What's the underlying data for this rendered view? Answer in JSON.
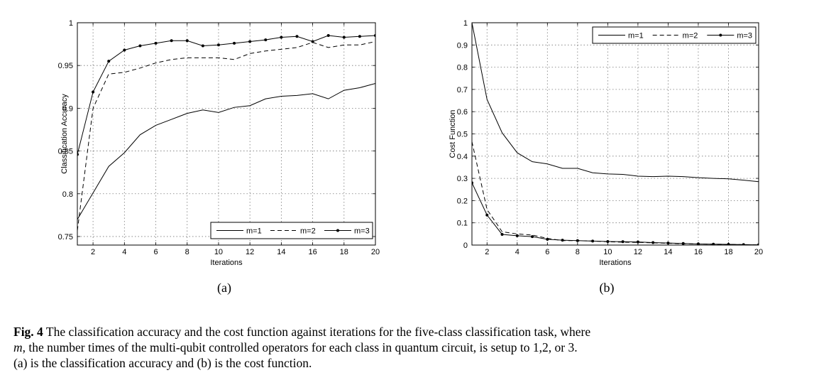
{
  "chart_data": [
    {
      "type": "line",
      "panel_label": "(a)",
      "title": "",
      "xlabel": "Iterations",
      "ylabel": "Classification Accuracy",
      "xlim": [
        1,
        20
      ],
      "ylim": [
        0.74,
        1.0
      ],
      "xticks": [
        2,
        4,
        6,
        8,
        10,
        12,
        14,
        16,
        18,
        20
      ],
      "yticks": [
        0.75,
        0.8,
        0.85,
        0.9,
        0.95,
        1
      ],
      "ytick_labels": [
        "0.75",
        "0.8",
        "0.85",
        "0.9",
        "0.95",
        "1"
      ],
      "grid": true,
      "legend_position": "bottom-right",
      "legend_orientation": "horizontal",
      "x": [
        1,
        2,
        3,
        4,
        5,
        6,
        7,
        8,
        9,
        10,
        11,
        12,
        13,
        14,
        15,
        16,
        17,
        18,
        19,
        20
      ],
      "series": [
        {
          "name": "m=1",
          "style": "solid",
          "marker": "none",
          "values": [
            0.77,
            0.801,
            0.832,
            0.848,
            0.869,
            0.88,
            0.887,
            0.894,
            0.898,
            0.895,
            0.901,
            0.903,
            0.911,
            0.914,
            0.915,
            0.917,
            0.911,
            0.921,
            0.924,
            0.929
          ]
        },
        {
          "name": "m=2",
          "style": "dashed",
          "marker": "none",
          "values": [
            0.757,
            0.9,
            0.94,
            0.942,
            0.947,
            0.953,
            0.957,
            0.959,
            0.959,
            0.959,
            0.957,
            0.964,
            0.967,
            0.969,
            0.971,
            0.977,
            0.971,
            0.974,
            0.974,
            0.978
          ]
        },
        {
          "name": "m=3",
          "style": "solid",
          "marker": "dot",
          "values": [
            0.846,
            0.919,
            0.955,
            0.968,
            0.973,
            0.976,
            0.979,
            0.979,
            0.973,
            0.974,
            0.976,
            0.978,
            0.98,
            0.983,
            0.984,
            0.978,
            0.985,
            0.983,
            0.984,
            0.985
          ]
        }
      ]
    },
    {
      "type": "line",
      "panel_label": "(b)",
      "title": "",
      "xlabel": "Iterations",
      "ylabel": "Cost Function",
      "xlim": [
        1,
        20
      ],
      "ylim": [
        0,
        1
      ],
      "xticks": [
        2,
        4,
        6,
        8,
        10,
        12,
        14,
        16,
        18,
        20
      ],
      "yticks": [
        0,
        0.1,
        0.2,
        0.3,
        0.4,
        0.5,
        0.6,
        0.7,
        0.8,
        0.9,
        1
      ],
      "ytick_labels": [
        "0",
        "0.1",
        "0.2",
        "0.3",
        "0.4",
        "0.5",
        "0.6",
        "0.7",
        "0.8",
        "0.9",
        "1"
      ],
      "grid": true,
      "legend_position": "top-right",
      "legend_orientation": "horizontal",
      "x": [
        1,
        2,
        3,
        4,
        5,
        6,
        7,
        8,
        9,
        10,
        11,
        12,
        13,
        14,
        15,
        16,
        17,
        18,
        19,
        20
      ],
      "series": [
        {
          "name": "m=1",
          "style": "solid",
          "marker": "none",
          "values": [
            1.0,
            0.655,
            0.505,
            0.415,
            0.375,
            0.365,
            0.345,
            0.345,
            0.325,
            0.32,
            0.318,
            0.31,
            0.308,
            0.31,
            0.308,
            0.303,
            0.3,
            0.298,
            0.292,
            0.285
          ]
        },
        {
          "name": "m=2",
          "style": "dashed",
          "marker": "none",
          "values": [
            0.465,
            0.16,
            0.06,
            0.05,
            0.045,
            0.03,
            0.02,
            0.02,
            0.018,
            0.015,
            0.013,
            0.012,
            0.01,
            0.008,
            0.006,
            0.005,
            0.004,
            0.003,
            0.002,
            0.001
          ]
        },
        {
          "name": "m=3",
          "style": "solid",
          "marker": "dot",
          "values": [
            0.28,
            0.135,
            0.048,
            0.042,
            0.038,
            0.026,
            0.022,
            0.02,
            0.018,
            0.016,
            0.015,
            0.014,
            0.011,
            0.009,
            0.007,
            0.005,
            0.004,
            0.003,
            0.002,
            0.001
          ]
        }
      ]
    }
  ],
  "caption": {
    "figure_number": "Fig. 4",
    "line1": "The classification accuracy and the cost function against iterations for the five-class classification task, where",
    "variable": "m",
    "line2": ", the number times of the multi-qubit controlled operators for each class in quantum circuit, is setup to 1,2, or 3.",
    "line3": "(a) is the classification accuracy and (b) is the cost function."
  }
}
